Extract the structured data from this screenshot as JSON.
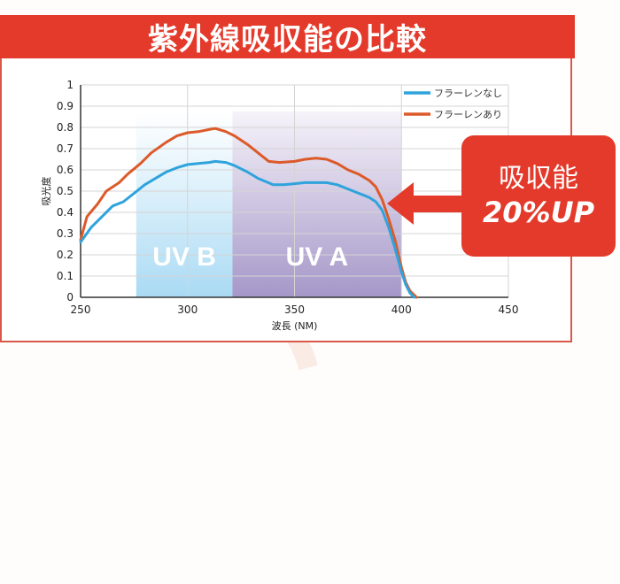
{
  "header": {
    "title": "紫外線吸収能の比較"
  },
  "callout": {
    "line1": "吸収能",
    "line2": "20%UP"
  },
  "colors": {
    "brand_red": "#e43a2b",
    "series_without": "#2ea3dc",
    "series_with": "#dc5a2a",
    "uvb_band": "#a9daf4",
    "uva_band": "#a597c8"
  },
  "chart_data": {
    "type": "line",
    "title": "紫外線吸収能の比較",
    "xlabel": "波長 (NM)",
    "ylabel": "吸光度",
    "xlim": [
      250,
      450
    ],
    "ylim": [
      0,
      1
    ],
    "x_ticks": [
      250,
      300,
      350,
      400,
      450
    ],
    "y_ticks": [
      0,
      0.1,
      0.2,
      0.3,
      0.4,
      0.5,
      0.6,
      0.7,
      0.8,
      0.9,
      1
    ],
    "y_tick_labels": [
      "0",
      "0.1",
      "0.2",
      "0.3",
      "0.4",
      "0.5",
      "0.6",
      "0.7",
      "0.8",
      "0.9",
      "1"
    ],
    "grid": true,
    "legend_position": "top-right",
    "bands": [
      {
        "label": "UV B",
        "from": 276,
        "to": 321
      },
      {
        "label": "UV A",
        "from": 321,
        "to": 400
      }
    ],
    "series": [
      {
        "name": "フラーレンなし",
        "x": [
          250,
          255,
          260,
          265,
          270,
          275,
          280,
          285,
          290,
          295,
          300,
          305,
          310,
          313,
          318,
          322,
          328,
          333,
          340,
          345,
          350,
          355,
          360,
          365,
          370,
          375,
          380,
          385,
          388,
          391,
          394,
          397,
          400,
          402,
          404,
          406
        ],
        "values": [
          0.26,
          0.33,
          0.38,
          0.43,
          0.45,
          0.49,
          0.53,
          0.56,
          0.59,
          0.61,
          0.625,
          0.63,
          0.635,
          0.64,
          0.635,
          0.62,
          0.59,
          0.56,
          0.53,
          0.53,
          0.535,
          0.54,
          0.54,
          0.54,
          0.53,
          0.51,
          0.49,
          0.47,
          0.45,
          0.41,
          0.33,
          0.23,
          0.12,
          0.06,
          0.02,
          0
        ]
      },
      {
        "name": "フラーレンあり",
        "x": [
          250,
          253,
          258,
          262,
          268,
          272,
          278,
          283,
          290,
          295,
          300,
          305,
          310,
          313,
          318,
          322,
          328,
          333,
          338,
          343,
          350,
          355,
          360,
          365,
          370,
          375,
          380,
          385,
          388,
          391,
          394,
          397,
          400,
          402,
          404,
          407
        ],
        "values": [
          0.27,
          0.38,
          0.44,
          0.5,
          0.54,
          0.58,
          0.63,
          0.68,
          0.73,
          0.76,
          0.775,
          0.78,
          0.79,
          0.795,
          0.78,
          0.76,
          0.72,
          0.68,
          0.64,
          0.635,
          0.64,
          0.65,
          0.655,
          0.65,
          0.63,
          0.6,
          0.58,
          0.55,
          0.52,
          0.46,
          0.37,
          0.27,
          0.14,
          0.07,
          0.03,
          0
        ]
      }
    ],
    "annotation": "吸収能 20%UP"
  }
}
